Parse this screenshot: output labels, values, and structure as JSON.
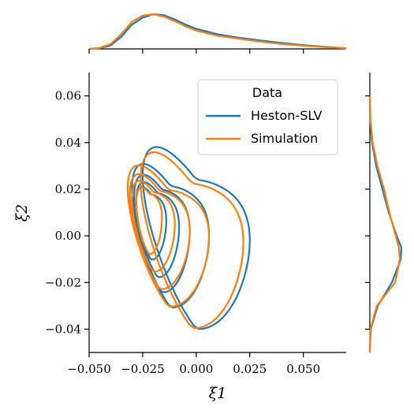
{
  "chart_data": {
    "type": "kde_joint",
    "xlabel": "ξ1",
    "ylabel": "ξ2",
    "xlim": [
      -0.05,
      0.07
    ],
    "ylim": [
      -0.05,
      0.07
    ],
    "x_ticks": [
      -0.05,
      -0.025,
      0.0,
      0.025,
      0.05
    ],
    "x_tick_labels": [
      "−0.050",
      "−0.025",
      "0.000",
      "0.025",
      "0.050"
    ],
    "y_ticks": [
      -0.04,
      -0.02,
      0.0,
      0.02,
      0.04,
      0.06
    ],
    "y_tick_labels": [
      "−0.04",
      "−0.02",
      "0.00",
      "0.02",
      "0.04",
      "0.06"
    ],
    "legend": {
      "title": "Data",
      "position": "upper right",
      "entries": [
        {
          "name": "Heston-SLV",
          "color": "#1f77b4"
        },
        {
          "name": "Simulation",
          "color": "#ff7f0e"
        }
      ]
    },
    "series": [
      {
        "name": "Heston-SLV",
        "color": "#1f77b4",
        "contours": [
          {
            "rx": 0.018,
            "ry": 0.026,
            "cx": -0.012,
            "cy": 0.005
          },
          {
            "rx": 0.025,
            "ry": 0.032,
            "cx": 0.0,
            "cy": 0.004
          },
          {
            "rx": 0.013,
            "ry": 0.022,
            "cx": -0.016,
            "cy": 0.006
          },
          {
            "rx": 0.01,
            "ry": 0.018,
            "cx": -0.018,
            "cy": 0.007
          },
          {
            "rx": 0.007,
            "ry": 0.014,
            "cx": -0.021,
            "cy": 0.009
          }
        ],
        "marginal_x": [
          [
            -0.05,
            0.0
          ],
          [
            -0.045,
            0.02
          ],
          [
            -0.04,
            0.1
          ],
          [
            -0.035,
            0.35
          ],
          [
            -0.03,
            0.7
          ],
          [
            -0.025,
            0.9
          ],
          [
            -0.02,
            1.0
          ],
          [
            -0.015,
            0.97
          ],
          [
            -0.01,
            0.85
          ],
          [
            -0.005,
            0.7
          ],
          [
            0.0,
            0.58
          ],
          [
            0.01,
            0.42
          ],
          [
            0.02,
            0.32
          ],
          [
            0.03,
            0.24
          ],
          [
            0.04,
            0.17
          ],
          [
            0.05,
            0.11
          ],
          [
            0.06,
            0.06
          ],
          [
            0.07,
            0.02
          ]
        ],
        "marginal_y": [
          [
            -0.05,
            0.0
          ],
          [
            -0.04,
            0.03
          ],
          [
            -0.03,
            0.25
          ],
          [
            -0.02,
            0.7
          ],
          [
            -0.01,
            0.98
          ],
          [
            -0.005,
            1.0
          ],
          [
            0.0,
            0.85
          ],
          [
            0.01,
            0.6
          ],
          [
            0.02,
            0.4
          ],
          [
            0.03,
            0.2
          ],
          [
            0.04,
            0.07
          ],
          [
            0.05,
            0.01
          ],
          [
            0.06,
            0.0
          ]
        ]
      },
      {
        "name": "Simulation",
        "color": "#ff7f0e",
        "contours": [
          {
            "rx": 0.019,
            "ry": 0.025,
            "cx": -0.013,
            "cy": 0.004
          },
          {
            "rx": 0.024,
            "ry": 0.031,
            "cx": -0.002,
            "cy": 0.003
          },
          {
            "rx": 0.014,
            "ry": 0.021,
            "cx": -0.017,
            "cy": 0.006
          },
          {
            "rx": 0.01,
            "ry": 0.017,
            "cx": -0.02,
            "cy": 0.008
          },
          {
            "rx": 0.006,
            "ry": 0.013,
            "cx": -0.022,
            "cy": 0.01
          }
        ],
        "marginal_x": [
          [
            -0.05,
            0.0
          ],
          [
            -0.045,
            0.03
          ],
          [
            -0.04,
            0.14
          ],
          [
            -0.035,
            0.42
          ],
          [
            -0.03,
            0.78
          ],
          [
            -0.025,
            0.96
          ],
          [
            -0.02,
            1.0
          ],
          [
            -0.015,
            0.93
          ],
          [
            -0.01,
            0.8
          ],
          [
            -0.005,
            0.65
          ],
          [
            0.0,
            0.53
          ],
          [
            0.01,
            0.38
          ],
          [
            0.02,
            0.29
          ],
          [
            0.03,
            0.21
          ],
          [
            0.04,
            0.14
          ],
          [
            0.05,
            0.09
          ],
          [
            0.06,
            0.05
          ],
          [
            0.07,
            0.02
          ]
        ],
        "marginal_y": [
          [
            -0.05,
            0.0
          ],
          [
            -0.04,
            0.02
          ],
          [
            -0.03,
            0.22
          ],
          [
            -0.02,
            0.8
          ],
          [
            -0.01,
            0.95
          ],
          [
            -0.005,
            0.92
          ],
          [
            0.0,
            0.82
          ],
          [
            0.01,
            0.62
          ],
          [
            0.02,
            0.45
          ],
          [
            0.03,
            0.24
          ],
          [
            0.04,
            0.09
          ],
          [
            0.05,
            0.02
          ],
          [
            0.06,
            0.0
          ]
        ]
      }
    ]
  }
}
